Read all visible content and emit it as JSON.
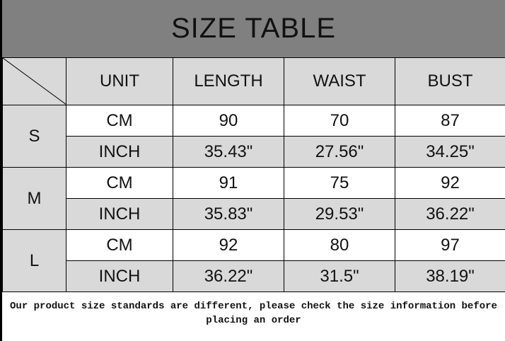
{
  "title": "SIZE TABLE",
  "headers": [
    "UNIT",
    "LENGTH",
    "WAIST",
    "BUST"
  ],
  "sizes": [
    {
      "size": "S",
      "rows": [
        {
          "unit": "CM",
          "values": [
            "90",
            "70",
            "87"
          ]
        },
        {
          "unit": "INCH",
          "values": [
            "35.43\"",
            "27.56\"",
            "34.25\""
          ]
        }
      ]
    },
    {
      "size": "M",
      "rows": [
        {
          "unit": "CM",
          "values": [
            "91",
            "75",
            "92"
          ]
        },
        {
          "unit": "INCH",
          "values": [
            "35.83\"",
            "29.53\"",
            "36.22\""
          ]
        }
      ]
    },
    {
      "size": "L",
      "rows": [
        {
          "unit": "CM",
          "values": [
            "92",
            "80",
            "97"
          ]
        },
        {
          "unit": "INCH",
          "values": [
            "36.22\"",
            "31.5\"",
            "38.19\""
          ]
        }
      ]
    }
  ],
  "note": "Our product size standards are different, please check the size information before placing an order"
}
